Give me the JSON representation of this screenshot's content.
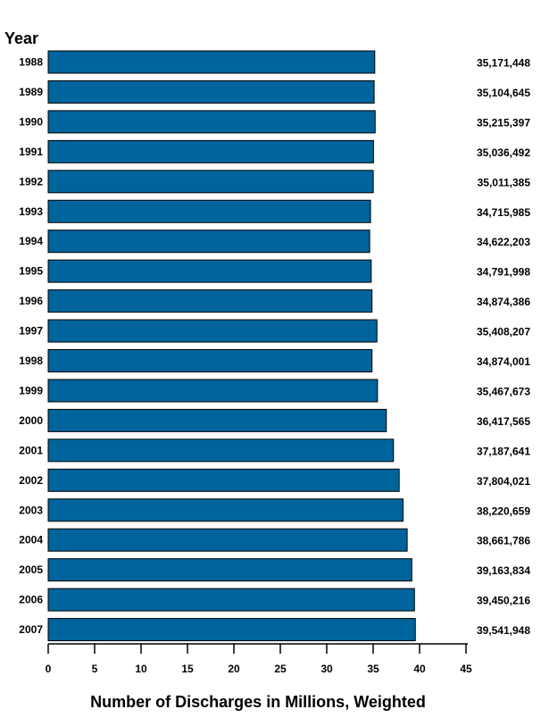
{
  "chart_data": {
    "type": "bar",
    "orientation": "horizontal",
    "y_axis_title": "Year",
    "xlabel": "Number of Discharges in Millions, Weighted",
    "xlim": [
      0,
      45
    ],
    "x_ticks": [
      0,
      5,
      10,
      15,
      20,
      25,
      30,
      35,
      40,
      45
    ],
    "grid": false,
    "bar_color": "#00649c",
    "categories": [
      "1988",
      "1989",
      "1990",
      "1991",
      "1992",
      "1993",
      "1994",
      "1995",
      "1996",
      "1997",
      "1998",
      "1999",
      "2000",
      "2001",
      "2002",
      "2003",
      "2004",
      "2005",
      "2006",
      "2007"
    ],
    "values": [
      35171448,
      35104645,
      35215397,
      35036492,
      35011385,
      34715985,
      34622203,
      34791998,
      34874386,
      35408207,
      34874001,
      35467673,
      36417565,
      37187641,
      37804021,
      38220659,
      38661786,
      39163834,
      39450216,
      39541948
    ],
    "value_labels": [
      "35,171,448",
      "35,104,645",
      "35,215,397",
      "35,036,492",
      "35,011,385",
      "34,715,985",
      "34,622,203",
      "34,791,998",
      "34,874,386",
      "35,408,207",
      "34,874,001",
      "35,467,673",
      "36,417,565",
      "37,187,641",
      "37,804,021",
      "38,220,659",
      "38,661,786",
      "39,163,834",
      "39,450,216",
      "39,541,948"
    ]
  }
}
